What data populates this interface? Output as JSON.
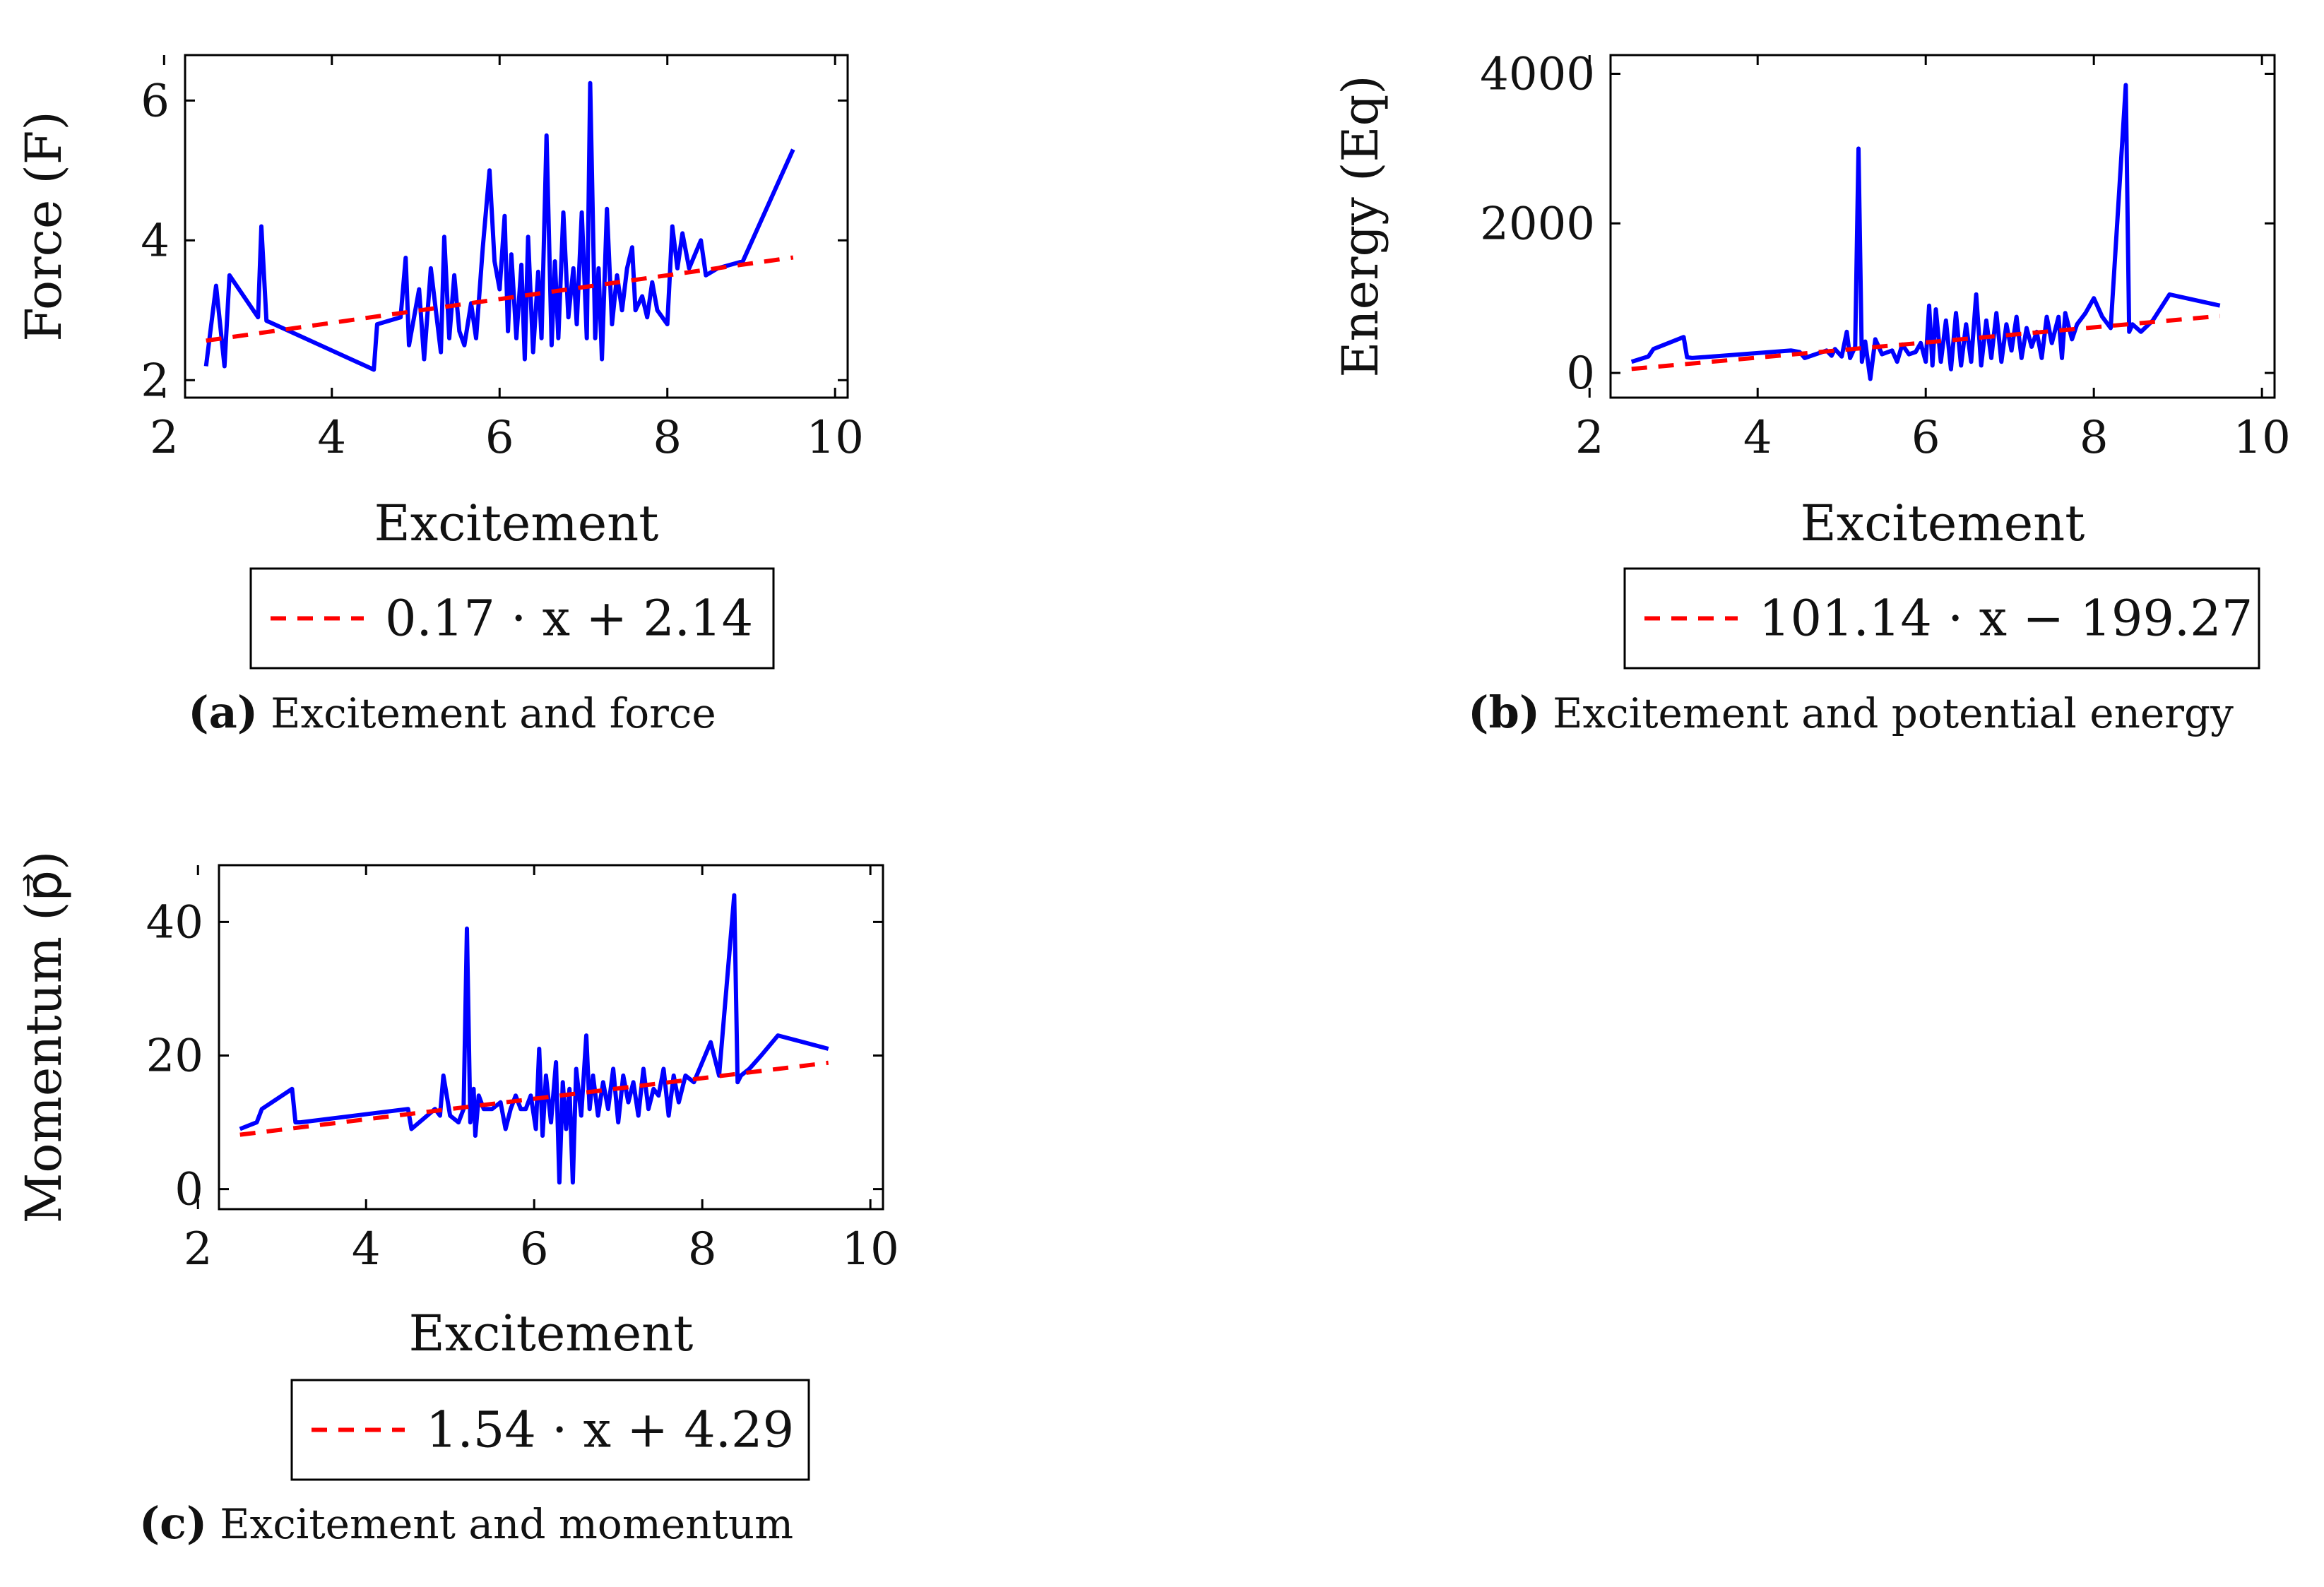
{
  "colors": {
    "series": "#0000ff",
    "fit": "#ff0000",
    "axis": "#000000"
  },
  "chart_data": [
    {
      "id": "a",
      "type": "line",
      "xlabel": "Excitement",
      "ylabel": "Force (F)",
      "xlim": [
        2.25,
        10.15
      ],
      "ylim": [
        1.75,
        6.65
      ],
      "xticks": [
        2,
        4,
        6,
        8,
        10
      ],
      "yticks": [
        2,
        4,
        6
      ],
      "series": [
        {
          "name": "data",
          "x": [
            2.5,
            2.62,
            2.72,
            2.78,
            3.12,
            3.16,
            3.22,
            4.5,
            4.54,
            4.82,
            4.88,
            4.92,
            5.04,
            5.1,
            5.18,
            5.3,
            5.34,
            5.4,
            5.46,
            5.52,
            5.58,
            5.66,
            5.72,
            5.8,
            5.88,
            5.94,
            6.0,
            6.06,
            6.1,
            6.14,
            6.2,
            6.26,
            6.3,
            6.34,
            6.4,
            6.46,
            6.5,
            6.56,
            6.62,
            6.66,
            6.7,
            6.76,
            6.82,
            6.88,
            6.92,
            6.98,
            7.04,
            7.08,
            7.14,
            7.18,
            7.22,
            7.28,
            7.34,
            7.4,
            7.46,
            7.52,
            7.58,
            7.62,
            7.7,
            7.76,
            7.82,
            7.88,
            8.0,
            8.06,
            8.12,
            8.18,
            8.26,
            8.4,
            8.46,
            8.6,
            8.9,
            9.5
          ],
          "values": [
            2.2,
            3.35,
            2.2,
            3.5,
            2.9,
            4.2,
            2.85,
            2.15,
            2.8,
            2.9,
            3.75,
            2.5,
            3.3,
            2.3,
            3.6,
            2.4,
            4.05,
            2.6,
            3.5,
            2.7,
            2.5,
            3.1,
            2.6,
            3.9,
            5.0,
            3.7,
            3.3,
            4.35,
            2.7,
            3.8,
            2.6,
            3.65,
            2.3,
            4.05,
            2.4,
            3.55,
            2.6,
            5.5,
            2.5,
            3.7,
            2.6,
            4.4,
            2.9,
            3.6,
            2.8,
            4.4,
            2.6,
            6.25,
            2.6,
            3.6,
            2.3,
            4.45,
            2.8,
            3.5,
            3.0,
            3.6,
            3.9,
            3.0,
            3.2,
            2.9,
            3.4,
            3.0,
            2.8,
            4.2,
            3.6,
            4.1,
            3.6,
            4.0,
            3.5,
            3.6,
            3.7,
            5.3
          ]
        },
        {
          "name": "0.17 · x + 2.14",
          "type": "fit",
          "slope": 0.17,
          "intercept": 2.14,
          "x_range": [
            2.5,
            9.5
          ]
        }
      ],
      "legend": "0.17 · x + 2.14",
      "caption_letter": "(a)",
      "caption": "Excitement and force"
    },
    {
      "id": "b",
      "type": "line",
      "xlabel": "Excitement",
      "ylabel": "Energy (Eq)",
      "xlim": [
        2.25,
        10.15
      ],
      "ylim": [
        -330,
        4250
      ],
      "xticks": [
        2,
        4,
        6,
        8,
        10
      ],
      "yticks": [
        0,
        2000,
        4000
      ],
      "series": [
        {
          "name": "data",
          "x": [
            2.5,
            2.7,
            2.76,
            3.12,
            3.16,
            3.22,
            4.4,
            4.5,
            4.56,
            4.82,
            4.88,
            4.92,
            5.0,
            5.06,
            5.1,
            5.16,
            5.2,
            5.24,
            5.28,
            5.34,
            5.4,
            5.48,
            5.6,
            5.66,
            5.72,
            5.8,
            5.88,
            5.94,
            6.0,
            6.04,
            6.08,
            6.12,
            6.18,
            6.24,
            6.3,
            6.36,
            6.42,
            6.48,
            6.54,
            6.6,
            6.66,
            6.72,
            6.78,
            6.84,
            6.9,
            6.96,
            7.02,
            7.08,
            7.14,
            7.2,
            7.26,
            7.32,
            7.38,
            7.44,
            7.5,
            7.58,
            7.62,
            7.66,
            7.74,
            7.8,
            7.9,
            8.0,
            8.1,
            8.2,
            8.38,
            8.42,
            8.46,
            8.56,
            8.7,
            8.9,
            9.5
          ],
          "values": [
            150,
            220,
            320,
            480,
            210,
            200,
            300,
            280,
            200,
            300,
            230,
            320,
            220,
            550,
            200,
            350,
            3000,
            150,
            420,
            -80,
            450,
            250,
            300,
            150,
            380,
            250,
            280,
            400,
            150,
            900,
            100,
            850,
            150,
            700,
            50,
            800,
            100,
            650,
            150,
            1050,
            100,
            700,
            200,
            800,
            150,
            650,
            300,
            750,
            200,
            600,
            350,
            550,
            200,
            750,
            400,
            750,
            200,
            800,
            450,
            650,
            800,
            1000,
            750,
            600,
            3850,
            550,
            650,
            550,
            700,
            1050,
            900
          ]
        },
        {
          "name": "101.14 · x − 199.27",
          "type": "fit",
          "slope": 101.14,
          "intercept": -199.27,
          "x_range": [
            2.5,
            9.5
          ]
        }
      ],
      "legend": "101.14 · x − 199.27",
      "caption_letter": "(b)",
      "caption": "Excitement and potential energy"
    },
    {
      "id": "c",
      "type": "line",
      "xlabel": "Excitement",
      "ylabel": "Momentum (p⃗)",
      "xlim": [
        2.25,
        10.15
      ],
      "ylim": [
        -3,
        48.5
      ],
      "xticks": [
        2,
        4,
        6,
        8,
        10
      ],
      "yticks": [
        0,
        20,
        40
      ],
      "series": [
        {
          "name": "data",
          "x": [
            2.5,
            2.7,
            2.76,
            3.12,
            3.16,
            3.22,
            4.5,
            4.54,
            4.82,
            4.88,
            4.92,
            5.0,
            5.1,
            5.16,
            5.2,
            5.24,
            5.28,
            5.3,
            5.34,
            5.4,
            5.5,
            5.6,
            5.66,
            5.72,
            5.78,
            5.84,
            5.9,
            5.96,
            6.02,
            6.06,
            6.1,
            6.14,
            6.2,
            6.26,
            6.3,
            6.34,
            6.38,
            6.42,
            6.46,
            6.5,
            6.56,
            6.62,
            6.66,
            6.7,
            6.76,
            6.82,
            6.88,
            6.94,
            7.0,
            7.06,
            7.12,
            7.18,
            7.24,
            7.3,
            7.36,
            7.42,
            7.48,
            7.54,
            7.6,
            7.66,
            7.72,
            7.8,
            7.9,
            8.1,
            8.2,
            8.38,
            8.42,
            8.46,
            8.56,
            8.7,
            8.9,
            9.5
          ],
          "values": [
            9,
            10,
            12,
            15,
            10,
            10,
            12,
            9,
            12,
            11,
            17,
            11,
            10,
            12,
            39,
            10,
            15,
            8,
            14,
            12,
            12,
            13,
            9,
            12,
            14,
            12,
            12,
            14,
            9,
            21,
            8,
            17,
            10,
            19,
            1,
            16,
            9,
            15,
            1,
            18,
            11,
            23,
            12,
            17,
            11,
            16,
            12,
            18,
            10,
            17,
            13,
            16,
            11,
            18,
            12,
            15,
            14,
            18,
            11,
            17,
            13,
            17,
            16,
            22,
            17,
            44,
            16,
            17,
            18,
            20,
            23,
            21
          ]
        },
        {
          "name": "1.54 · x + 4.29",
          "type": "fit",
          "slope": 1.54,
          "intercept": 4.29,
          "x_range": [
            2.5,
            9.5
          ]
        }
      ],
      "legend": "1.54 · x + 4.29",
      "caption_letter": "(c)",
      "caption": "Excitement and momentum"
    }
  ]
}
